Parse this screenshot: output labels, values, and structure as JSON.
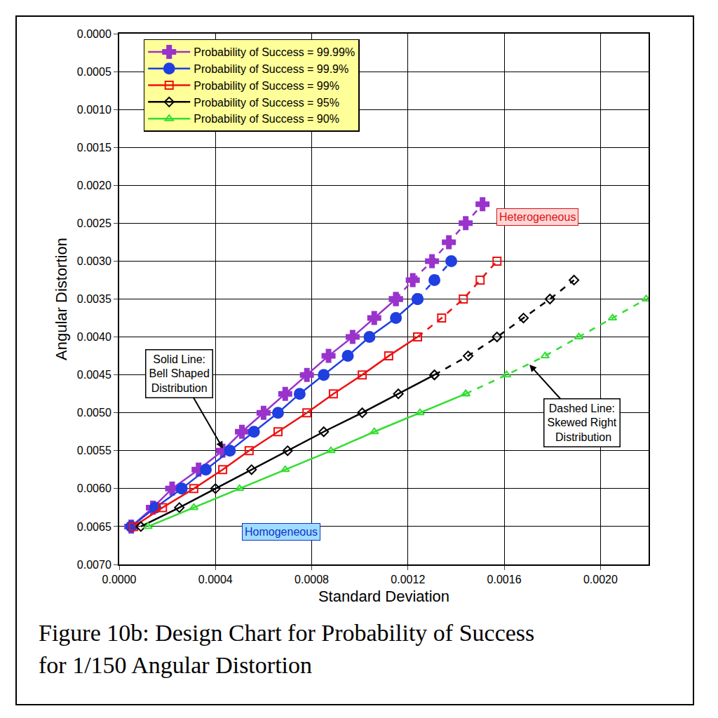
{
  "chart_data": {
    "type": "line",
    "title": "Figure 10b: Design Chart for Probability of Success\nfor 1/150 Angular Distortion",
    "x_label": "Standard Deviation",
    "y_label": "Angular Distortion",
    "xlim": [
      0,
      0.0022
    ],
    "ylim": [
      0.007,
      0
    ],
    "xticks": [
      {
        "value": 0,
        "label": "0.0000"
      },
      0.0004,
      0.0008,
      0.0012,
      0.0016,
      {
        "value": 0.002,
        "label": "0.0020"
      }
    ],
    "yticks": [
      {
        "value": 0,
        "label": "0.0000"
      },
      0.0005,
      {
        "value": 0.001,
        "label": "0.0010"
      },
      0.0015,
      {
        "value": 0.002,
        "label": "0.0020"
      },
      0.0025,
      {
        "value": 0.003,
        "label": "0.0030"
      },
      0.0035,
      {
        "value": 0.004,
        "label": "0.0040"
      },
      0.0045,
      {
        "value": 0.005,
        "label": "0.0050"
      },
      0.0055,
      {
        "value": 0.006,
        "label": "0.0060"
      },
      0.0065,
      {
        "value": 0.007,
        "label": "0.0070"
      }
    ],
    "grid": true,
    "legend": "top left",
    "annotations": [
      "Heterogeneous",
      "Homogeneous",
      "Solid Line:\nBell Shaped\nDistribution",
      "Dashed Line:\nSkewed Right\n Distribution"
    ],
    "series": [
      {
        "name": "Probability of Success = 99.99%",
        "color": "#9933cc",
        "marker": "plus",
        "line_style": "solid",
        "x": [
          5e-05,
          0.00014,
          0.00022,
          0.00033,
          0.00043,
          0.00051,
          0.0006,
          0.00069,
          0.00078,
          0.00087,
          0.00097,
          0.00106,
          0.00115
        ],
        "values": [
          0.0065,
          0.00625,
          0.006,
          0.00575,
          0.0055,
          0.00525,
          0.005,
          0.00475,
          0.0045,
          0.00425,
          0.004,
          0.00375,
          0.0035
        ]
      },
      {
        "name": "Probability of Success = 99.99%",
        "color": "#9933cc",
        "marker": "plus",
        "line_style": "dashed",
        "x": [
          0.00115,
          0.00122,
          0.0013,
          0.00137,
          0.00144,
          0.00151
        ],
        "values": [
          0.0035,
          0.00325,
          0.003,
          0.00275,
          0.0025,
          0.00225
        ]
      },
      {
        "name": "Probability of Success = 99.9%",
        "color": "#1f3fe0",
        "marker": "circle",
        "line_style": "solid",
        "x": [
          5e-05,
          0.00015,
          0.00026,
          0.00036,
          0.00046,
          0.00056,
          0.00066,
          0.00075,
          0.00085,
          0.00095,
          0.00104,
          0.00115,
          0.00124
        ],
        "values": [
          0.0065,
          0.00625,
          0.006,
          0.00575,
          0.0055,
          0.00525,
          0.005,
          0.00475,
          0.0045,
          0.00425,
          0.004,
          0.00375,
          0.0035
        ]
      },
      {
        "name": "Probability of Success = 99.9%",
        "color": "#1f3fe0",
        "marker": "circle",
        "line_style": "dashed",
        "x": [
          0.00124,
          0.00131,
          0.00138
        ],
        "values": [
          0.0035,
          0.00325,
          0.003
        ]
      },
      {
        "name": "Probability of Success = 99%",
        "color": "#ee1111",
        "marker": "square-open",
        "line_style": "solid",
        "x": [
          6e-05,
          0.00018,
          0.00031,
          0.00043,
          0.00054,
          0.00066,
          0.00078,
          0.00089,
          0.00101,
          0.00112,
          0.00124
        ],
        "values": [
          0.0065,
          0.00625,
          0.006,
          0.00575,
          0.0055,
          0.00525,
          0.005,
          0.00475,
          0.0045,
          0.00425,
          0.004
        ]
      },
      {
        "name": "Probability of Success = 99%",
        "color": "#ee1111",
        "marker": "square-open",
        "line_style": "dashed",
        "x": [
          0.00124,
          0.00134,
          0.00143,
          0.0015,
          0.00157
        ],
        "values": [
          0.004,
          0.00375,
          0.0035,
          0.00325,
          0.003
        ]
      },
      {
        "name": "Probability of Success = 95%",
        "color": "#000000",
        "marker": "diamond-open",
        "line_style": "solid",
        "x": [
          9e-05,
          0.00025,
          0.0004,
          0.00055,
          0.0007,
          0.00085,
          0.00101,
          0.00116,
          0.00131
        ],
        "values": [
          0.0065,
          0.00625,
          0.006,
          0.00575,
          0.0055,
          0.00525,
          0.005,
          0.00475,
          0.0045
        ]
      },
      {
        "name": "Probability of Success = 95%",
        "color": "#000000",
        "marker": "diamond-open",
        "line_style": "dashed",
        "x": [
          0.00131,
          0.00145,
          0.00157,
          0.00168,
          0.00179,
          0.00189
        ],
        "values": [
          0.0045,
          0.00425,
          0.004,
          0.00375,
          0.0035,
          0.00325
        ]
      },
      {
        "name": "Probability of Success = 90%",
        "color": "#33dd33",
        "marker": "triangle-open",
        "line_style": "solid",
        "x": [
          0.00012,
          0.00031,
          0.0005,
          0.00069,
          0.00088,
          0.00106,
          0.00125,
          0.00144
        ],
        "values": [
          0.0065,
          0.00625,
          0.006,
          0.00575,
          0.0055,
          0.00525,
          0.005,
          0.00475
        ]
      },
      {
        "name": "Probability of Success = 90%",
        "color": "#33dd33",
        "marker": "triangle-open",
        "line_style": "dashed",
        "x": [
          0.00144,
          0.00161,
          0.00177,
          0.00191,
          0.00205,
          0.00219
        ],
        "values": [
          0.00475,
          0.0045,
          0.00425,
          0.004,
          0.00375,
          0.0035
        ]
      }
    ]
  }
}
